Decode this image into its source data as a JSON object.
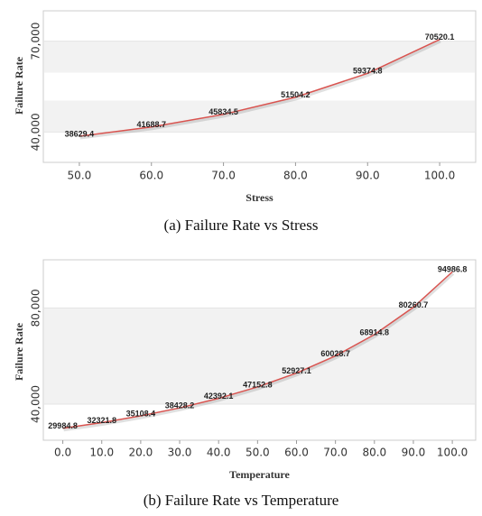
{
  "chart_data": [
    {
      "type": "line",
      "caption": "(a) Failure Rate vs Stress",
      "x_label": "Stress",
      "y_label": "Failure Rate",
      "x": [
        50,
        60,
        70,
        80,
        90,
        100
      ],
      "values": [
        38629.4,
        41688.7,
        45834.5,
        51504.2,
        59374.8,
        70520.1
      ],
      "color": "#d9534f",
      "xlim": [
        45,
        105
      ],
      "ylim": [
        30000,
        80000
      ],
      "xticks": [
        {
          "value": 50,
          "label": "50.0"
        },
        {
          "value": 60,
          "label": "60.0"
        },
        {
          "value": 70,
          "label": "70.0"
        },
        {
          "value": 80,
          "label": "80.0"
        },
        {
          "value": 90,
          "label": "90.0"
        },
        {
          "value": 100,
          "label": "100.0"
        }
      ],
      "yticks": [
        {
          "value": 40000,
          "label": "40,000"
        },
        {
          "value": 70000,
          "label": "70,000"
        }
      ],
      "grid": "bands"
    },
    {
      "type": "line",
      "caption": "(b) Failure Rate vs Temperature",
      "x_label": "Temperature",
      "y_label": "Failure Rate",
      "x": [
        0,
        10,
        20,
        30,
        40,
        50,
        60,
        70,
        80,
        90,
        100
      ],
      "values": [
        29984.8,
        32321.8,
        35108.4,
        38428.2,
        42392.1,
        47152.8,
        52927.1,
        60028.7,
        68914.8,
        80260.7,
        94986.8
      ],
      "color": "#d9534f",
      "xlim": [
        -5,
        106
      ],
      "ylim": [
        25000,
        100000
      ],
      "xticks": [
        {
          "value": 0,
          "label": "0.0"
        },
        {
          "value": 10,
          "label": "10.0"
        },
        {
          "value": 20,
          "label": "20.0"
        },
        {
          "value": 30,
          "label": "30.0"
        },
        {
          "value": 40,
          "label": "40.0"
        },
        {
          "value": 50,
          "label": "50.0"
        },
        {
          "value": 60,
          "label": "60.0"
        },
        {
          "value": 70,
          "label": "70.0"
        },
        {
          "value": 80,
          "label": "80.0"
        },
        {
          "value": 90,
          "label": "90.0"
        },
        {
          "value": 100,
          "label": "100.0"
        }
      ],
      "yticks": [
        {
          "value": 40000,
          "label": "40,000"
        },
        {
          "value": 80000,
          "label": "80,000"
        }
      ],
      "grid": "bands"
    }
  ]
}
